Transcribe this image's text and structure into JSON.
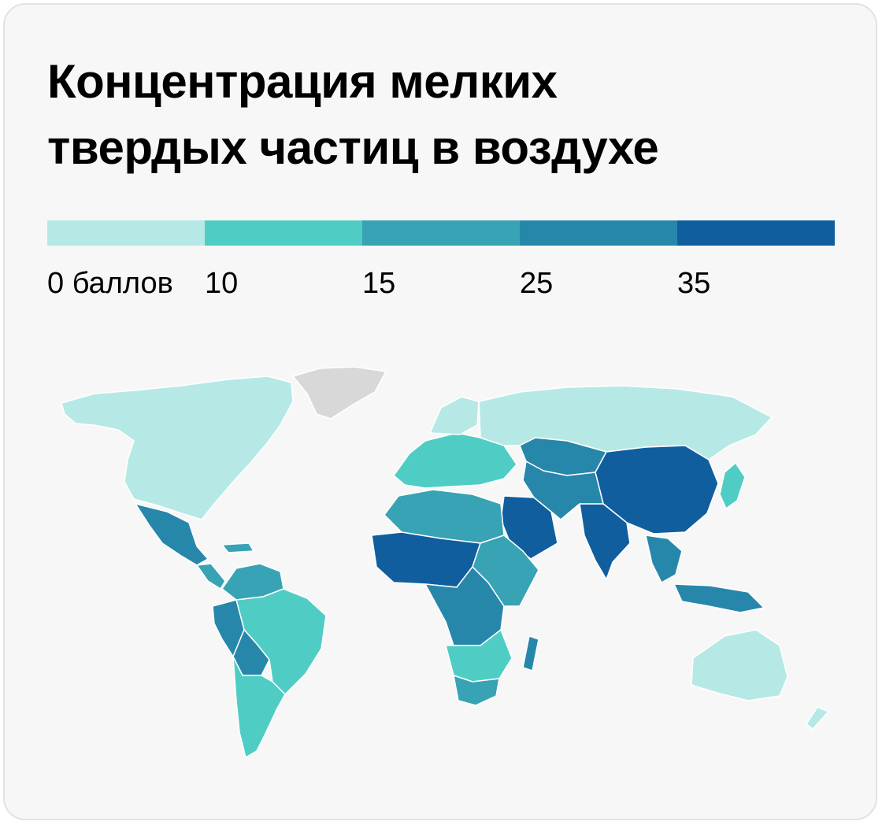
{
  "title": "Концентрация мелких\nтвердых частиц в воздухе",
  "legend": {
    "labels": [
      "0 баллов",
      "10",
      "15",
      "25",
      "35"
    ],
    "colors": [
      "#b6e9e6",
      "#4fcdc4",
      "#37a3b4",
      "#2787ab",
      "#105e9e"
    ]
  },
  "no_data_color": "#d8d8d8",
  "chart_data": {
    "type": "choropleth",
    "title": "Концентрация мелких твердых частиц в воздухе",
    "bins": [
      {
        "min": 0,
        "max": 10,
        "color": "#b6e9e6"
      },
      {
        "min": 10,
        "max": 15,
        "color": "#4fcdc4"
      },
      {
        "min": 15,
        "max": 25,
        "color": "#37a3b4"
      },
      {
        "min": 25,
        "max": 35,
        "color": "#2787ab"
      },
      {
        "min": 35,
        "max": null,
        "color": "#105e9e"
      }
    ],
    "regions": [
      {
        "name": "North America",
        "bin": 0
      },
      {
        "name": "Greenland",
        "bin": null
      },
      {
        "name": "Mexico",
        "bin": 3
      },
      {
        "name": "Central America",
        "bin": 2
      },
      {
        "name": "Northern South America",
        "bin": 2
      },
      {
        "name": "Brazil",
        "bin": 1
      },
      {
        "name": "Peru",
        "bin": 3
      },
      {
        "name": "Bolivia",
        "bin": 3
      },
      {
        "name": "Southern South America",
        "bin": 1
      },
      {
        "name": "Europe",
        "bin": 1
      },
      {
        "name": "Scandinavia",
        "bin": 0
      },
      {
        "name": "Russia",
        "bin": 0
      },
      {
        "name": "Kazakhstan",
        "bin": 3
      },
      {
        "name": "China",
        "bin": 4
      },
      {
        "name": "India",
        "bin": 4
      },
      {
        "name": "Middle East",
        "bin": 4
      },
      {
        "name": "Iran and Central Asia",
        "bin": 3
      },
      {
        "name": "Southeast Asia",
        "bin": 3
      },
      {
        "name": "Japan",
        "bin": 1
      },
      {
        "name": "North Africa",
        "bin": 2
      },
      {
        "name": "Sahel and West Africa",
        "bin": 4
      },
      {
        "name": "Central Africa",
        "bin": 3
      },
      {
        "name": "East Africa",
        "bin": 2
      },
      {
        "name": "Southern Africa",
        "bin": 1
      },
      {
        "name": "South Africa",
        "bin": 2
      },
      {
        "name": "Madagascar",
        "bin": 3
      },
      {
        "name": "Indonesia",
        "bin": 3
      },
      {
        "name": "Australia",
        "bin": 0
      },
      {
        "name": "New Zealand",
        "bin": 0
      }
    ]
  }
}
